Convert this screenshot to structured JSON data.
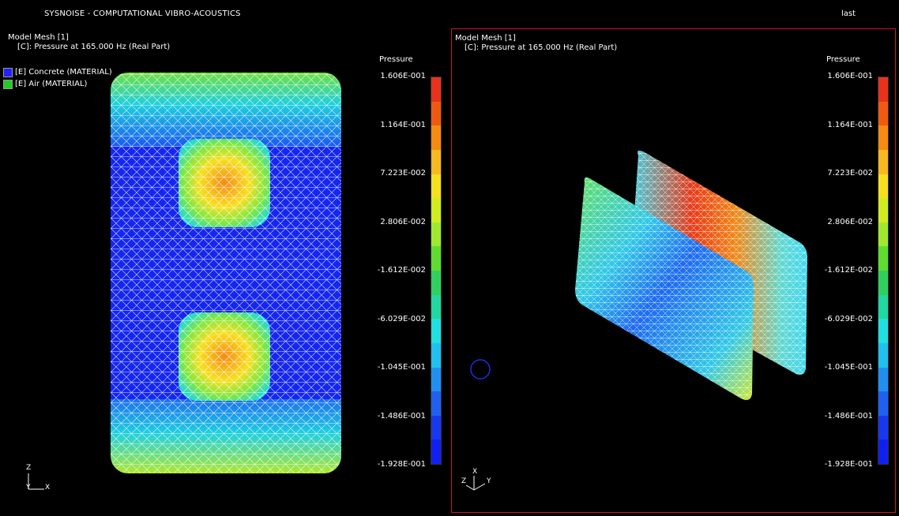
{
  "app": {
    "title": "SYSNOISE - COMPUTATIONAL VIBRO-ACOUSTICS",
    "view_name": "last"
  },
  "left_view": {
    "title": "Model Mesh [1]",
    "subtitle": "[C]: Pressure at 165.000 Hz (Real Part)",
    "legend": [
      {
        "label": "[E] Concrete (MATERIAL)",
        "color": "#2222ff"
      },
      {
        "label": "[E] Air (MATERIAL)",
        "color": "#22cc22"
      }
    ],
    "axes": {
      "z": "Z",
      "y": "Y",
      "x": "X"
    }
  },
  "right_view": {
    "title": "Model Mesh [1]",
    "subtitle": "[C]: Pressure at 165.000 Hz (Real Part)",
    "axes": {
      "z": "Z",
      "x": "X",
      "y": "Y"
    }
  },
  "colorbar": {
    "title": "Pressure",
    "ticks": [
      "1.606E-001",
      "1.164E-001",
      "7.223E-002",
      "2.806E-002",
      "-1.612E-002",
      "-6.029E-002",
      "-1.045E-001",
      "-1.486E-001",
      "-1.928E-001"
    ],
    "colors": [
      "#e8321c",
      "#f05a10",
      "#f78a10",
      "#f8b820",
      "#f5e020",
      "#d0ec20",
      "#a0e830",
      "#60dc30",
      "#30d060",
      "#20d8a0",
      "#20e0e0",
      "#20c0f0",
      "#2090f0",
      "#2060f0",
      "#1838f0",
      "#1020f0"
    ]
  }
}
